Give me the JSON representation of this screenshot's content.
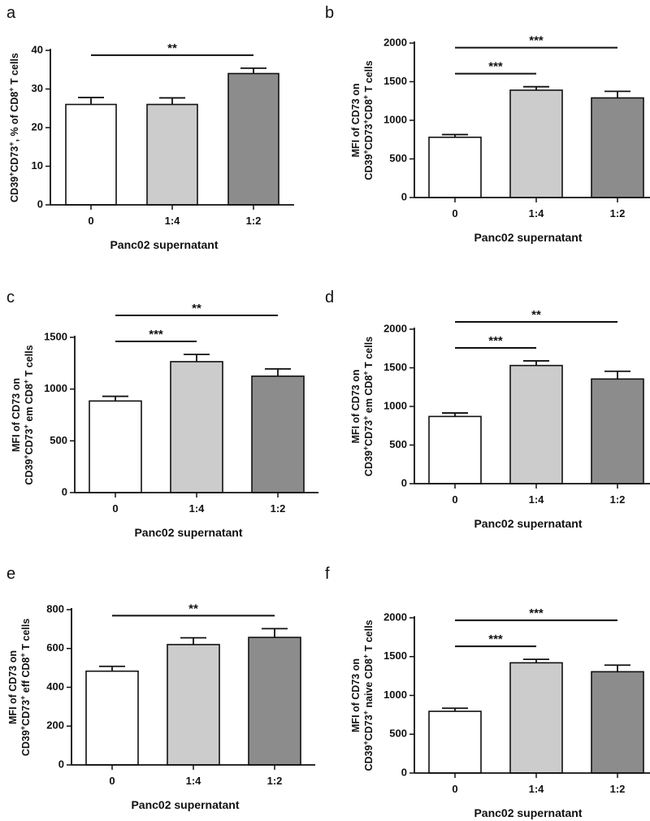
{
  "chart_data": [
    {
      "panel": "a",
      "type": "bar",
      "categories": [
        "0",
        "1:4",
        "1:2"
      ],
      "values": [
        26,
        26,
        34
      ],
      "errors": [
        1.8,
        1.7,
        1.4
      ],
      "colors": [
        "#ffffff",
        "#cccccc",
        "#8c8c8c"
      ],
      "xlabel": "Panc02 supernatant",
      "ylabel_lines": [
        {
          "segments": [
            {
              "t": "CD39"
            },
            {
              "t": "+",
              "sup": true
            },
            {
              "t": "CD73"
            },
            {
              "t": "+",
              "sup": true
            },
            {
              "t": ", % of CD8"
            },
            {
              "t": "+",
              "sup": true
            },
            {
              "t": " T cells"
            }
          ]
        }
      ],
      "ylim": [
        0,
        40
      ],
      "yticks": [
        "0",
        "10",
        "20",
        "30",
        "40"
      ],
      "significance": [
        {
          "from": 0,
          "to": 2,
          "label": "**"
        }
      ]
    },
    {
      "panel": "b",
      "type": "bar",
      "categories": [
        "0",
        "1:4",
        "1:2"
      ],
      "values": [
        780,
        1390,
        1290
      ],
      "errors": [
        35,
        45,
        85
      ],
      "colors": [
        "#ffffff",
        "#cccccc",
        "#8c8c8c"
      ],
      "xlabel": "Panc02 supernatant",
      "ylabel_lines": [
        {
          "segments": [
            {
              "t": "MFI of CD73 on"
            }
          ]
        },
        {
          "segments": [
            {
              "t": "CD39"
            },
            {
              "t": "+",
              "sup": true
            },
            {
              "t": "CD73"
            },
            {
              "t": "+",
              "sup": true
            },
            {
              "t": "CD8"
            },
            {
              "t": "+",
              "sup": true
            },
            {
              "t": " T cells"
            }
          ]
        }
      ],
      "ylim": [
        0,
        2000
      ],
      "yticks": [
        "0",
        "500",
        "1000",
        "1500",
        "2000"
      ],
      "significance": [
        {
          "from": 0,
          "to": 1,
          "label": "***"
        },
        {
          "from": 0,
          "to": 2,
          "label": "***"
        }
      ]
    },
    {
      "panel": "c",
      "type": "bar",
      "categories": [
        "0",
        "1:4",
        "1:2"
      ],
      "values": [
        885,
        1265,
        1125
      ],
      "errors": [
        45,
        70,
        70
      ],
      "colors": [
        "#ffffff",
        "#cccccc",
        "#8c8c8c"
      ],
      "xlabel": "Panc02 supernatant",
      "ylabel_lines": [
        {
          "segments": [
            {
              "t": "MFI of CD73 on"
            }
          ]
        },
        {
          "segments": [
            {
              "t": "CD39"
            },
            {
              "t": "+",
              "sup": true
            },
            {
              "t": "CD73"
            },
            {
              "t": "+",
              "sup": true
            },
            {
              "t": " em CD8"
            },
            {
              "t": "+",
              "sup": true
            },
            {
              "t": " T cells"
            }
          ]
        }
      ],
      "ylim": [
        0,
        1500
      ],
      "yticks": [
        "0",
        "500",
        "1000",
        "1500"
      ],
      "significance": [
        {
          "from": 0,
          "to": 1,
          "label": "***"
        },
        {
          "from": 0,
          "to": 2,
          "label": "**"
        }
      ]
    },
    {
      "panel": "d",
      "type": "bar",
      "categories": [
        "0",
        "1:4",
        "1:2"
      ],
      "values": [
        870,
        1530,
        1355
      ],
      "errors": [
        45,
        60,
        100
      ],
      "colors": [
        "#ffffff",
        "#cccccc",
        "#8c8c8c"
      ],
      "xlabel": "Panc02 supernatant",
      "ylabel_lines": [
        {
          "segments": [
            {
              "t": "MFI of CD73 on"
            }
          ]
        },
        {
          "segments": [
            {
              "t": "CD39"
            },
            {
              "t": "+",
              "sup": true
            },
            {
              "t": "CD73"
            },
            {
              "t": "+",
              "sup": true
            },
            {
              "t": " em CD8"
            },
            {
              "t": "+",
              "sup": true
            },
            {
              "t": " T cells"
            }
          ]
        }
      ],
      "ylim": [
        0,
        2000
      ],
      "yticks": [
        "0",
        "500",
        "1000",
        "1500",
        "2000"
      ],
      "significance": [
        {
          "from": 0,
          "to": 1,
          "label": "***"
        },
        {
          "from": 0,
          "to": 2,
          "label": "**"
        }
      ]
    },
    {
      "panel": "e",
      "type": "bar",
      "categories": [
        "0",
        "1:4",
        "1:2"
      ],
      "values": [
        483,
        620,
        657
      ],
      "errors": [
        25,
        35,
        45
      ],
      "colors": [
        "#ffffff",
        "#cccccc",
        "#8c8c8c"
      ],
      "xlabel": "Panc02 supernatant",
      "ylabel_lines": [
        {
          "segments": [
            {
              "t": "MFI of CD73 on"
            }
          ]
        },
        {
          "segments": [
            {
              "t": "CD39"
            },
            {
              "t": "+",
              "sup": true
            },
            {
              "t": "CD73"
            },
            {
              "t": "+",
              "sup": true
            },
            {
              "t": " eff CD8"
            },
            {
              "t": "+",
              "sup": true
            },
            {
              "t": " T cells"
            }
          ]
        }
      ],
      "ylim": [
        0,
        800
      ],
      "yticks": [
        "0",
        "200",
        "400",
        "600",
        "800"
      ],
      "significance": [
        {
          "from": 0,
          "to": 2,
          "label": "**"
        }
      ]
    },
    {
      "panel": "f",
      "type": "bar",
      "categories": [
        "0",
        "1:4",
        "1:2"
      ],
      "values": [
        795,
        1420,
        1305
      ],
      "errors": [
        40,
        45,
        85
      ],
      "colors": [
        "#ffffff",
        "#cccccc",
        "#8c8c8c"
      ],
      "xlabel": "Panc02 supernatant",
      "ylabel_lines": [
        {
          "segments": [
            {
              "t": "MFI of CD73 on"
            }
          ]
        },
        {
          "segments": [
            {
              "t": "CD39"
            },
            {
              "t": "+",
              "sup": true
            },
            {
              "t": "CD73"
            },
            {
              "t": "+",
              "sup": true
            },
            {
              "t": " naive CD8"
            },
            {
              "t": "+",
              "sup": true
            },
            {
              "t": " T cells"
            }
          ]
        }
      ],
      "ylim": [
        0,
        2000
      ],
      "yticks": [
        "0",
        "500",
        "1000",
        "1500",
        "2000"
      ],
      "significance": [
        {
          "from": 0,
          "to": 1,
          "label": "***"
        },
        {
          "from": 0,
          "to": 2,
          "label": "***"
        }
      ]
    }
  ]
}
